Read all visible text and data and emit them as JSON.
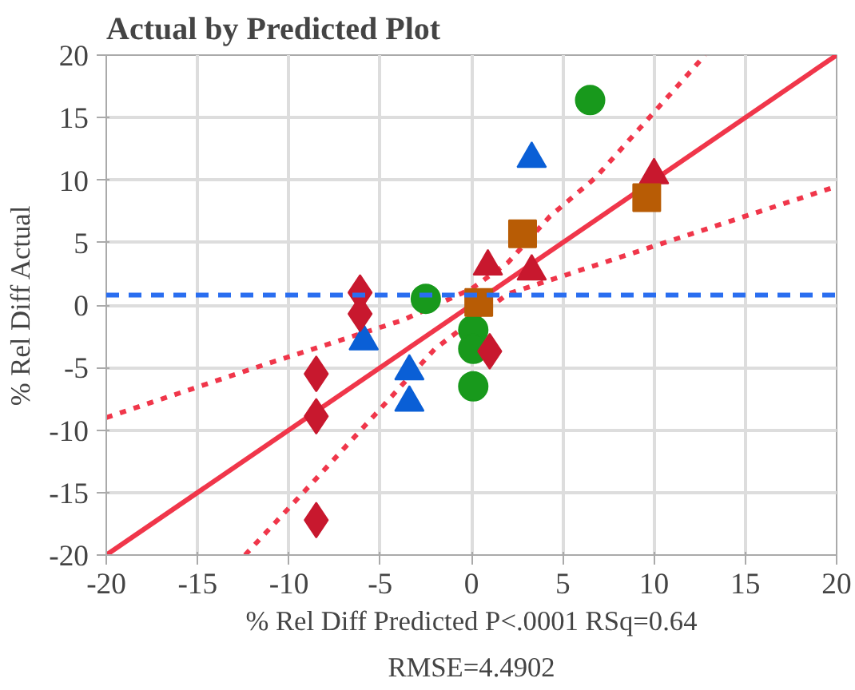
{
  "chart_data": {
    "type": "scatter",
    "title": "Actual by Predicted Plot",
    "xlabel": "% Rel Diff Predicted P<.0001 RSq=0.64",
    "ylabel": "% Rel Diff Actual",
    "annotations": [
      "RMSE=4.4902"
    ],
    "xlim": [
      -20,
      20
    ],
    "ylim": [
      -20,
      20
    ],
    "xticks": [
      -20,
      -15,
      -10,
      -5,
      0,
      5,
      10,
      15,
      20
    ],
    "yticks": [
      -20,
      -15,
      -10,
      -5,
      0,
      5,
      10,
      15,
      20
    ],
    "grid": true,
    "ref_lines": [
      {
        "axis": "y",
        "value": 0.8,
        "color": "#2a6ef0",
        "line_style": "dashed"
      }
    ],
    "series": [
      {
        "type": "line",
        "color": "#f0364a",
        "line_style": "solid",
        "x": [
          -20,
          20
        ],
        "values": [
          -20,
          20
        ]
      },
      {
        "type": "line",
        "color": "#f0364a",
        "line_style": "dotted",
        "x": [
          -20,
          -11.2,
          -3.75,
          0,
          2,
          4.3,
          6.8,
          12.8
        ],
        "values": [
          -9,
          -4.7,
          -1.2,
          1.3,
          3.4,
          7.1,
          10.2,
          20
        ]
      },
      {
        "type": "line",
        "color": "#f0364a",
        "line_style": "dotted",
        "x": [
          -12.4,
          -8.7,
          -5.3,
          -2,
          2,
          6.2,
          20
        ],
        "values": [
          -20,
          -14.2,
          -8.8,
          -3.5,
          0.9,
          2.9,
          9.5
        ]
      },
      {
        "color": "#18991c",
        "marker": "circle",
        "x": [
          6.5,
          -2.5,
          0.1,
          0.1,
          0.1
        ],
        "values": [
          16.4,
          0.5,
          -2.0,
          -3.5,
          -6.5
        ]
      },
      {
        "color": "#0a5fd6",
        "marker": "triangle",
        "x": [
          -5.9,
          -3.4,
          -3.4,
          3.3
        ],
        "values": [
          -2.9,
          -5.3,
          -7.8,
          11.7
        ]
      },
      {
        "color": "#c8182e",
        "marker": "diamond",
        "x": [
          -6.1,
          -6.1,
          -8.5,
          -8.5,
          -8.5,
          1.0
        ],
        "values": [
          1.0,
          -0.7,
          -5.5,
          -8.9,
          -17.2,
          -3.7
        ]
      },
      {
        "color": "#c8182e",
        "marker": "triangle",
        "x": [
          0.9,
          3.3,
          10.0
        ],
        "values": [
          3.1,
          2.7,
          10.4
        ]
      },
      {
        "color": "#b85c05",
        "marker": "square",
        "x": [
          0.4,
          2.8,
          9.6
        ],
        "values": [
          0.2,
          5.7,
          8.6
        ]
      }
    ]
  }
}
